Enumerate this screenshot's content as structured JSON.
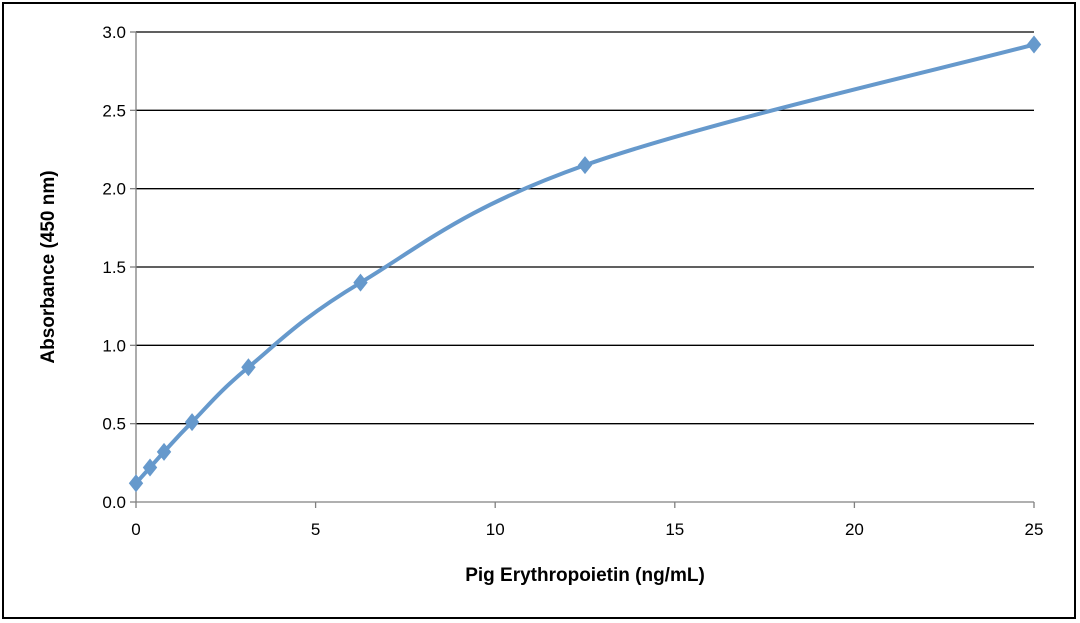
{
  "chart_data": {
    "type": "line",
    "title": "",
    "xlabel": "Pig Erythropoietin  (ng/mL)",
    "ylabel": "Absorbance  (450 nm)",
    "xlim": [
      0,
      25
    ],
    "ylim": [
      0,
      3.0
    ],
    "xticks": [
      "0",
      "5",
      "10",
      "15",
      "20",
      "25"
    ],
    "yticks": [
      "0.0",
      "0.5",
      "1.0",
      "1.5",
      "2.0",
      "2.5",
      "3.0"
    ],
    "grid": "horizontal",
    "legend": "none",
    "series": [
      {
        "marker": "diamond",
        "smooth": true,
        "x": [
          0,
          0.39,
          0.78,
          1.56,
          3.13,
          6.25,
          12.5,
          25
        ],
        "y": [
          0.12,
          0.22,
          0.32,
          0.51,
          0.86,
          1.4,
          2.15,
          2.92
        ]
      }
    ]
  },
  "colors": {
    "series": "#6699cc",
    "grid": "#000000",
    "axis": "#808080",
    "frame": "#000000"
  }
}
